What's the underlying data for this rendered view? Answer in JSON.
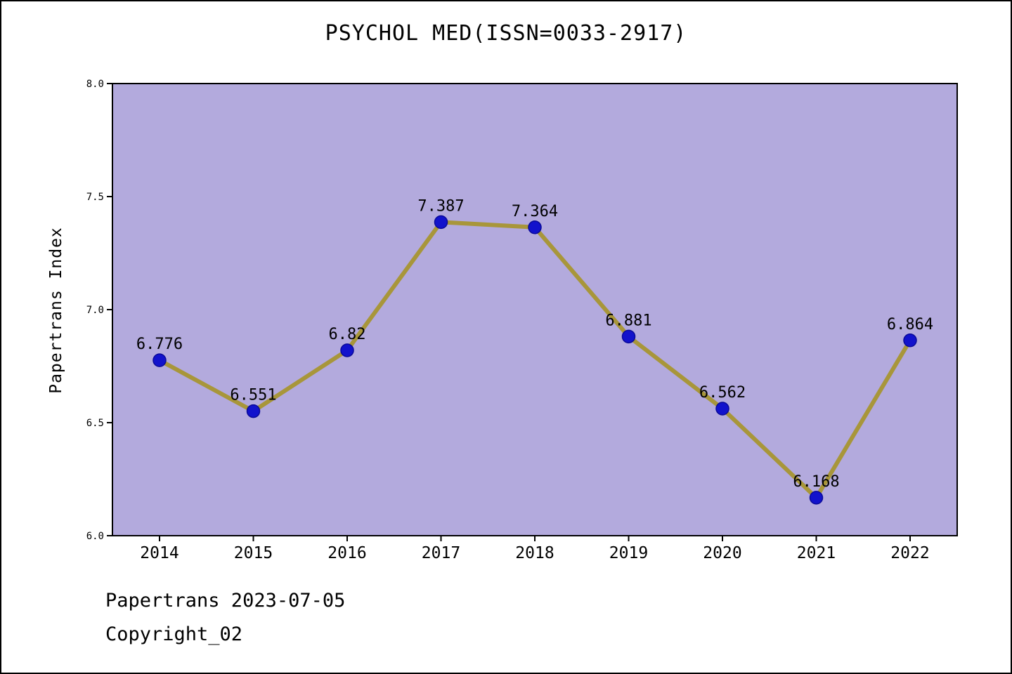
{
  "title": "PSYCHOL MED(ISSN=0033-2917)",
  "footer": {
    "line1": "Papertrans 2023-07-05",
    "line2": "Copyright_02"
  },
  "chart_data": {
    "type": "line",
    "title": "PSYCHOL MED(ISSN=0033-2917)",
    "xlabel": "",
    "ylabel": "Papertrans Index",
    "categories": [
      "2014",
      "2015",
      "2016",
      "2017",
      "2018",
      "2019",
      "2020",
      "2021",
      "2022"
    ],
    "series": [
      {
        "name": "Papertrans Index",
        "values": [
          6.776,
          6.551,
          6.82,
          7.387,
          7.364,
          6.881,
          6.562,
          6.168,
          6.864
        ],
        "point_labels": [
          "6.776",
          "6.551",
          "6.82",
          "7.387",
          "7.364",
          "6.881",
          "6.562",
          "6.168",
          "6.864"
        ]
      }
    ],
    "ylim": [
      6.0,
      8.0
    ],
    "yticks": [
      6.0,
      6.5,
      7.0,
      7.5,
      8.0
    ],
    "ytick_labels": [
      "6.0",
      "6.5",
      "7.0",
      "7.5",
      "8.0"
    ],
    "grid": false,
    "legend": "none",
    "colors": {
      "plot_background": "#b3aadd",
      "line": "#a8963a",
      "marker_fill": "#1212cc",
      "marker_edge": "#0a0a99",
      "axis": "#000000",
      "text": "#000000"
    }
  }
}
